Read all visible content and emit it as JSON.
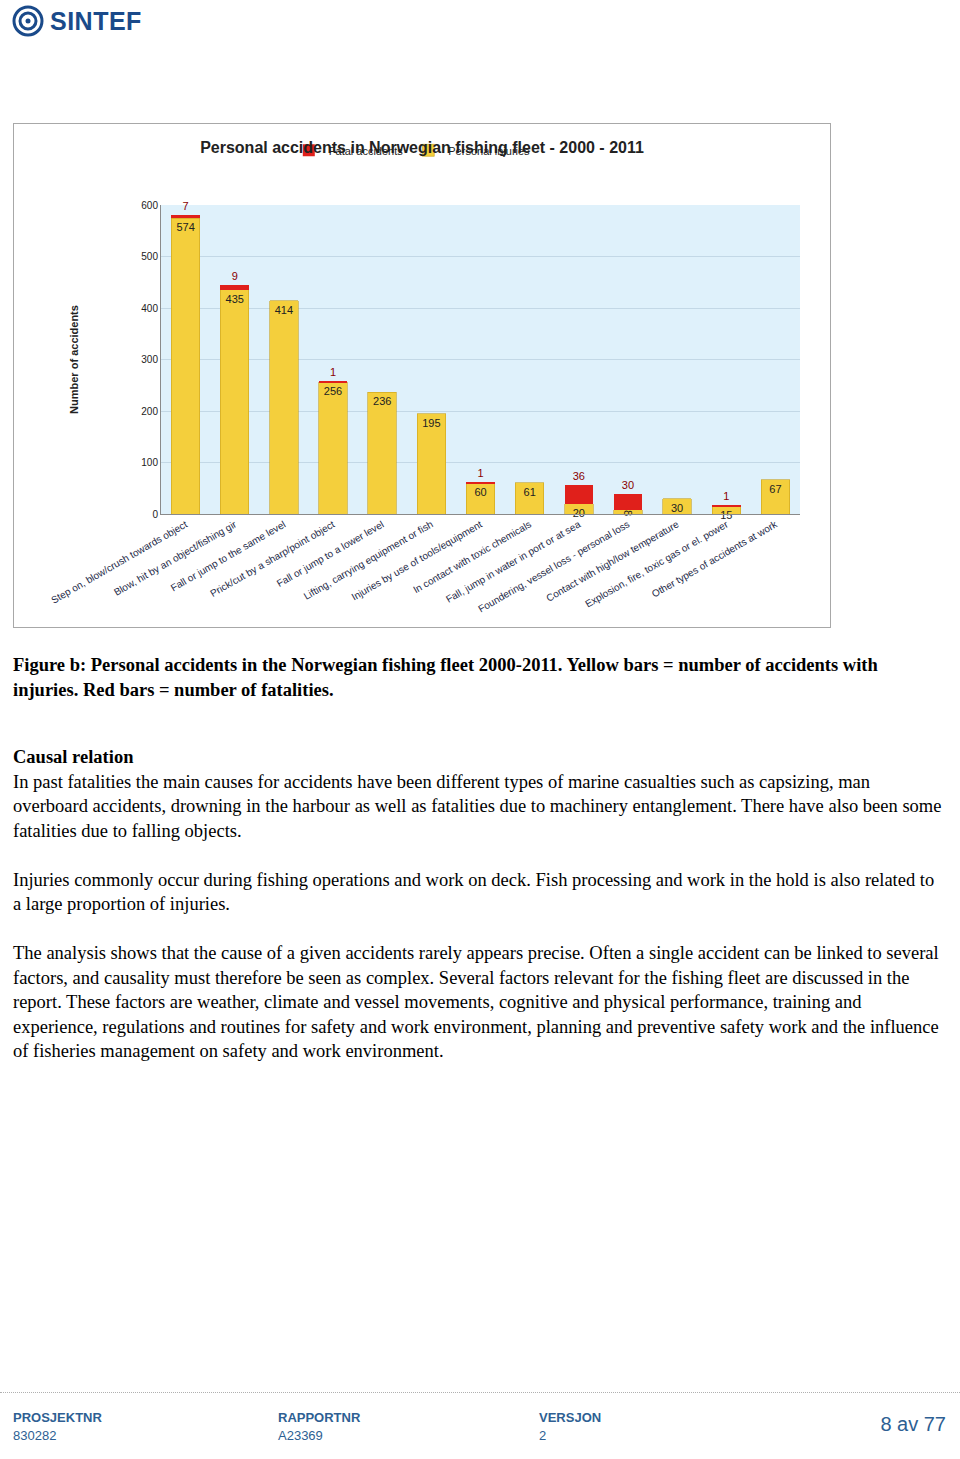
{
  "header": {
    "logo": "SINTEF"
  },
  "chart_data": {
    "type": "bar",
    "title": "Personal accidents in Norwegian fishing fleet - 2000 - 2011",
    "y_label": "Number of accidents",
    "categories": [
      "Step on, blow/crush towards object",
      "Blow, hit by an object/fishing gir",
      "Fall or jump to the same level",
      "Prick/cut by a sharp/point object",
      "Fall or jump to a lower level",
      "Lifting, carrying equipment or fish",
      "Injuries by use of tools/equipment",
      "In contact with toxic chemicals",
      "Fall, jump in water in port or at sea",
      "Foundering, vessel loss - personal loss",
      "Contact with high/low temperature",
      "Explosion, fire, toxic gas or el. power",
      "Other types of accidents at work"
    ],
    "series": [
      {
        "name": "Personal injuries",
        "color": "#f4cf3c",
        "values": [
          574,
          435,
          414,
          256,
          236,
          195,
          60,
          61,
          20,
          8,
          30,
          15,
          67
        ]
      },
      {
        "name": "Fatal accidents",
        "color": "#e0201b",
        "values": [
          7,
          9,
          null,
          1,
          null,
          null,
          1,
          null,
          36,
          30,
          null,
          1,
          null
        ]
      }
    ],
    "stacked": true,
    "data_labels": true,
    "ylim": [
      0,
      600
    ],
    "yticks": [
      0,
      100,
      200,
      300,
      400,
      500,
      600
    ],
    "grid": true,
    "legend": "top"
  },
  "caption": "Figure b: Personal accidents in the Norwegian fishing fleet 2000-2011. Yellow bars = number of accidents with injuries. Red bars = number of fatalities.",
  "sections": [
    {
      "heading": "Causal relation",
      "paragraphs": [
        "In past fatalities the main causes for accidents have been different types of marine casualties such as capsizing, man overboard accidents, drowning in the harbour as well as fatalities due to machinery entanglement. There have also been some fatalities due to falling objects.",
        "Injuries commonly occur during fishing operations and work on deck. Fish processing and work in the hold is also related to a large proportion of injuries.",
        "The analysis shows that the cause of a given accidents rarely appears precise. Often a single accident can be linked to several factors, and causality must therefore be seen as complex. Several factors relevant for the fishing fleet are discussed in the report. These factors are weather, climate and vessel movements, cognitive and physical performance, training and experience, regulations and routines for safety and work environment, planning and preventive safety work and the influence of fisheries management on safety and work environment."
      ]
    }
  ],
  "footer": {
    "fields": [
      {
        "label": "PROSJEKTNR",
        "value": "830282"
      },
      {
        "label": "RAPPORTNR",
        "value": "A23369"
      },
      {
        "label": "VERSJON",
        "value": "2"
      }
    ],
    "page": "8 av 77"
  }
}
